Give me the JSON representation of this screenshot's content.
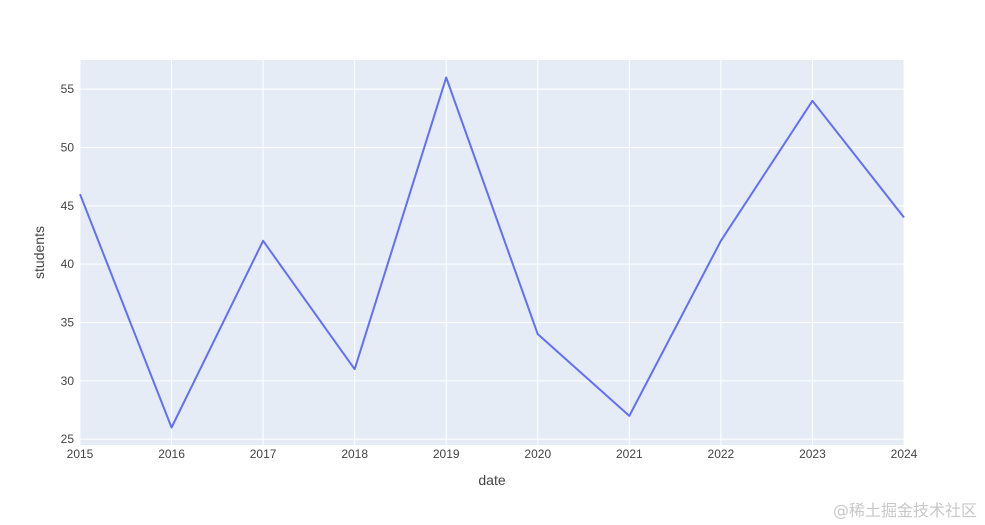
{
  "chart_data": {
    "type": "line",
    "x": [
      "2015",
      "2016",
      "2017",
      "2018",
      "2019",
      "2020",
      "2021",
      "2022",
      "2023",
      "2024"
    ],
    "series": [
      {
        "values": [
          46,
          26,
          42,
          31,
          56,
          34,
          27,
          42,
          54,
          44
        ]
      }
    ],
    "xlabel": "date",
    "ylabel": "students",
    "xlim": [
      2015,
      2024
    ],
    "ylim": [
      24.5,
      57.5
    ],
    "yticks": [
      25,
      30,
      35,
      40,
      45,
      50,
      55
    ],
    "grid": true,
    "colors": {
      "line": "#636efa",
      "plot_background": "#e5ecf6",
      "grid": "#ffffff"
    }
  },
  "watermark": "@稀土掘金技术社区"
}
